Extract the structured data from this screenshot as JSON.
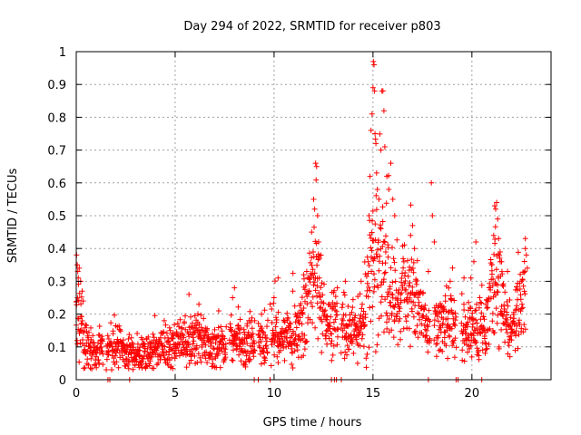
{
  "chart_data": {
    "type": "scatter",
    "title": "Day 294 of 2022, SRMTID for receiver p803",
    "xlabel": "GPS time / hours",
    "ylabel": "SRMTID / TECUs",
    "xlim": [
      0,
      24
    ],
    "ylim": [
      0,
      1
    ],
    "grid": true,
    "marker": "+",
    "color": "#ff0000",
    "x_ticks": [
      0,
      5,
      10,
      15,
      20
    ],
    "x_tick_labels": [
      "0",
      "5",
      "10",
      "15",
      "20"
    ],
    "y_ticks": [
      0,
      0.1,
      0.2,
      0.3,
      0.4,
      0.5,
      0.6,
      0.7,
      0.8,
      0.9,
      1
    ],
    "y_tick_labels": [
      "0",
      "0.1",
      "0.2",
      "0.3",
      "0.4",
      "0.5",
      "0.6",
      "0.7",
      "0.8",
      "0.9",
      "1"
    ],
    "profile": [
      {
        "x": 0.0,
        "base": 0.22,
        "spread": 0.16
      },
      {
        "x": 0.3,
        "base": 0.14,
        "spread": 0.12
      },
      {
        "x": 0.6,
        "base": 0.09,
        "spread": 0.06
      },
      {
        "x": 1.5,
        "base": 0.09,
        "spread": 0.06
      },
      {
        "x": 2.0,
        "base": 0.1,
        "spread": 0.08
      },
      {
        "x": 3.0,
        "base": 0.07,
        "spread": 0.05
      },
      {
        "x": 4.0,
        "base": 0.09,
        "spread": 0.06
      },
      {
        "x": 5.0,
        "base": 0.1,
        "spread": 0.07
      },
      {
        "x": 6.0,
        "base": 0.13,
        "spread": 0.09
      },
      {
        "x": 7.0,
        "base": 0.09,
        "spread": 0.07
      },
      {
        "x": 8.0,
        "base": 0.12,
        "spread": 0.09
      },
      {
        "x": 9.0,
        "base": 0.11,
        "spread": 0.08
      },
      {
        "x": 10.0,
        "base": 0.14,
        "spread": 0.09
      },
      {
        "x": 11.0,
        "base": 0.12,
        "spread": 0.08
      },
      {
        "x": 11.6,
        "base": 0.22,
        "spread": 0.14
      },
      {
        "x": 12.1,
        "base": 0.34,
        "spread": 0.22
      },
      {
        "x": 12.5,
        "base": 0.17,
        "spread": 0.1
      },
      {
        "x": 13.5,
        "base": 0.17,
        "spread": 0.09
      },
      {
        "x": 14.5,
        "base": 0.15,
        "spread": 0.1
      },
      {
        "x": 15.0,
        "base": 0.42,
        "spread": 0.34
      },
      {
        "x": 15.5,
        "base": 0.35,
        "spread": 0.25
      },
      {
        "x": 16.2,
        "base": 0.23,
        "spread": 0.12
      },
      {
        "x": 16.9,
        "base": 0.28,
        "spread": 0.15
      },
      {
        "x": 17.5,
        "base": 0.19,
        "spread": 0.1
      },
      {
        "x": 18.0,
        "base": 0.16,
        "spread": 0.1
      },
      {
        "x": 19.0,
        "base": 0.17,
        "spread": 0.1
      },
      {
        "x": 20.0,
        "base": 0.15,
        "spread": 0.09
      },
      {
        "x": 20.6,
        "base": 0.14,
        "spread": 0.1
      },
      {
        "x": 21.2,
        "base": 0.3,
        "spread": 0.22
      },
      {
        "x": 22.0,
        "base": 0.14,
        "spread": 0.09
      },
      {
        "x": 22.7,
        "base": 0.25,
        "spread": 0.15
      }
    ],
    "gaps": [
      [
        1.35,
        1.5
      ],
      [
        7.6,
        7.75
      ],
      [
        9.05,
        9.2
      ],
      [
        9.7,
        9.85
      ],
      [
        13.25,
        13.4
      ],
      [
        17.9,
        18.1
      ],
      [
        19.2,
        19.45
      ]
    ],
    "peaks": [
      {
        "x": 0.02,
        "y": 0.38
      },
      {
        "x": 0.05,
        "y": 0.35
      },
      {
        "x": 0.08,
        "y": 0.33
      },
      {
        "x": 0.1,
        "y": 0.31
      },
      {
        "x": 0.15,
        "y": 0.34
      },
      {
        "x": 0.22,
        "y": 0.3
      },
      {
        "x": 0.3,
        "y": 0.27
      },
      {
        "x": 0.35,
        "y": 0.24
      },
      {
        "x": 5.7,
        "y": 0.26
      },
      {
        "x": 6.2,
        "y": 0.23
      },
      {
        "x": 7.2,
        "y": 0.21
      },
      {
        "x": 7.9,
        "y": 0.25
      },
      {
        "x": 8.0,
        "y": 0.28
      },
      {
        "x": 9.8,
        "y": 0.23
      },
      {
        "x": 10.2,
        "y": 0.31
      },
      {
        "x": 10.95,
        "y": 0.27
      },
      {
        "x": 11.5,
        "y": 0.32
      },
      {
        "x": 11.9,
        "y": 0.45
      },
      {
        "x": 12.0,
        "y": 0.55
      },
      {
        "x": 12.05,
        "y": 0.52
      },
      {
        "x": 12.1,
        "y": 0.66
      },
      {
        "x": 12.15,
        "y": 0.65
      },
      {
        "x": 12.2,
        "y": 0.5
      },
      {
        "x": 12.25,
        "y": 0.42
      },
      {
        "x": 12.3,
        "y": 0.37
      },
      {
        "x": 13.2,
        "y": 0.28
      },
      {
        "x": 13.6,
        "y": 0.3
      },
      {
        "x": 14.4,
        "y": 0.3
      },
      {
        "x": 14.8,
        "y": 0.5
      },
      {
        "x": 14.85,
        "y": 0.62
      },
      {
        "x": 14.9,
        "y": 0.76
      },
      {
        "x": 14.95,
        "y": 0.81
      },
      {
        "x": 15.0,
        "y": 0.89
      },
      {
        "x": 15.02,
        "y": 0.97
      },
      {
        "x": 15.05,
        "y": 0.96
      },
      {
        "x": 15.08,
        "y": 0.88
      },
      {
        "x": 15.1,
        "y": 0.75
      },
      {
        "x": 15.15,
        "y": 0.72
      },
      {
        "x": 15.18,
        "y": 0.63
      },
      {
        "x": 15.22,
        "y": 0.58
      },
      {
        "x": 15.3,
        "y": 0.55
      },
      {
        "x": 15.4,
        "y": 0.7
      },
      {
        "x": 15.45,
        "y": 0.88
      },
      {
        "x": 15.5,
        "y": 0.88
      },
      {
        "x": 15.55,
        "y": 0.82
      },
      {
        "x": 15.6,
        "y": 0.71
      },
      {
        "x": 15.7,
        "y": 0.62
      },
      {
        "x": 15.8,
        "y": 0.58
      },
      {
        "x": 15.9,
        "y": 0.66
      },
      {
        "x": 16.0,
        "y": 0.55
      },
      {
        "x": 16.1,
        "y": 0.5
      },
      {
        "x": 16.9,
        "y": 0.44
      },
      {
        "x": 17.0,
        "y": 0.47
      },
      {
        "x": 17.1,
        "y": 0.4
      },
      {
        "x": 17.8,
        "y": 0.33
      },
      {
        "x": 17.95,
        "y": 0.6
      },
      {
        "x": 18.0,
        "y": 0.5
      },
      {
        "x": 18.1,
        "y": 0.42
      },
      {
        "x": 18.9,
        "y": 0.3
      },
      {
        "x": 19.6,
        "y": 0.31
      },
      {
        "x": 19.95,
        "y": 0.31
      },
      {
        "x": 20.1,
        "y": 0.36
      },
      {
        "x": 20.2,
        "y": 0.42
      },
      {
        "x": 20.4,
        "y": 0.25
      },
      {
        "x": 21.0,
        "y": 0.35
      },
      {
        "x": 21.1,
        "y": 0.44
      },
      {
        "x": 21.15,
        "y": 0.53
      },
      {
        "x": 21.2,
        "y": 0.52
      },
      {
        "x": 21.25,
        "y": 0.54
      },
      {
        "x": 21.3,
        "y": 0.49
      },
      {
        "x": 21.35,
        "y": 0.43
      },
      {
        "x": 21.5,
        "y": 0.36
      },
      {
        "x": 21.8,
        "y": 0.33
      },
      {
        "x": 22.5,
        "y": 0.3
      },
      {
        "x": 22.7,
        "y": 0.4
      },
      {
        "x": 22.75,
        "y": 0.38
      },
      {
        "x": 22.8,
        "y": 0.34
      }
    ],
    "baseline_marks": [
      {
        "x": 1.6,
        "y": 0
      },
      {
        "x": 1.7,
        "y": 0
      },
      {
        "x": 2.7,
        "y": 0
      },
      {
        "x": 9.0,
        "y": 0
      },
      {
        "x": 9.2,
        "y": 0
      },
      {
        "x": 9.8,
        "y": 0
      },
      {
        "x": 12.9,
        "y": 0
      },
      {
        "x": 13.05,
        "y": 0
      },
      {
        "x": 13.15,
        "y": 0
      },
      {
        "x": 13.4,
        "y": 0
      },
      {
        "x": 17.8,
        "y": 0
      },
      {
        "x": 19.2,
        "y": 0
      },
      {
        "x": 19.3,
        "y": 0
      },
      {
        "x": 20.5,
        "y": 0
      }
    ],
    "sample_step_hours": 0.025,
    "seed": 294
  }
}
